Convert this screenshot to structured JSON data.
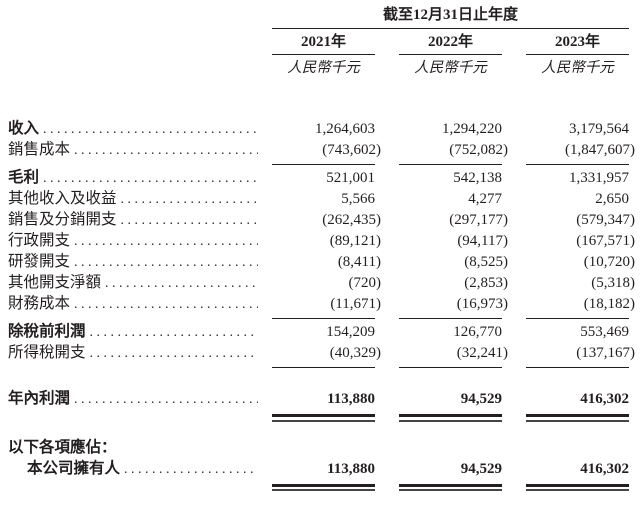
{
  "colors": {
    "ink": "#231f20",
    "background": "#ffffff"
  },
  "table": {
    "period_header": "截至12月31日止年度",
    "years": [
      "2021年",
      "2022年",
      "2023年"
    ],
    "unit_label": "人民幣千元",
    "rows": [
      {
        "label": "收入",
        "label_bold": true,
        "dots": true,
        "values": [
          "1,264,603",
          "1,294,220",
          "3,179,564"
        ]
      },
      {
        "label": "銷售成本",
        "dots": true,
        "values": [
          "(743,602)",
          "(752,082)",
          "(1,847,607)"
        ],
        "rule_below": "single"
      },
      {
        "label": "毛利",
        "label_bold": true,
        "dots": true,
        "values": [
          "521,001",
          "542,138",
          "1,331,957"
        ]
      },
      {
        "label": "其他收入及收益",
        "dots": true,
        "values": [
          "5,566",
          "4,277",
          "2,650"
        ]
      },
      {
        "label": "銷售及分銷開支",
        "dots": true,
        "values": [
          "(262,435)",
          "(297,177)",
          "(579,347)"
        ]
      },
      {
        "label": "行政開支",
        "dots": true,
        "values": [
          "(89,121)",
          "(94,117)",
          "(167,571)"
        ]
      },
      {
        "label": "研發開支",
        "dots": true,
        "values": [
          "(8,411)",
          "(8,525)",
          "(10,720)"
        ]
      },
      {
        "label": "其他開支淨額",
        "dots": true,
        "values": [
          "(720)",
          "(2,853)",
          "(5,318)"
        ]
      },
      {
        "label": "財務成本",
        "dots": true,
        "values": [
          "(11,671)",
          "(16,973)",
          "(18,182)"
        ],
        "rule_below": "single"
      },
      {
        "label": "除稅前利潤",
        "label_bold": true,
        "dots": true,
        "values": [
          "154,209",
          "126,770",
          "553,469"
        ]
      },
      {
        "label": "所得稅開支",
        "dots": true,
        "values": [
          "(40,329)",
          "(32,241)",
          "(137,167)"
        ],
        "rule_below": "single"
      },
      {
        "label": "年內利潤",
        "label_bold": true,
        "values_bold": true,
        "dots": true,
        "values": [
          "113,880",
          "94,529",
          "416,302"
        ],
        "rule_below": "double",
        "gap_before": 20
      },
      {
        "label": "以下各項應佔：",
        "label_bold": true,
        "dots": false,
        "values": [],
        "gap_before": 15
      },
      {
        "label": "本公司擁有人",
        "label_bold": true,
        "values_bold": true,
        "indent": true,
        "dots": true,
        "values": [
          "113,880",
          "94,529",
          "416,302"
        ],
        "rule_below": "double"
      }
    ]
  }
}
